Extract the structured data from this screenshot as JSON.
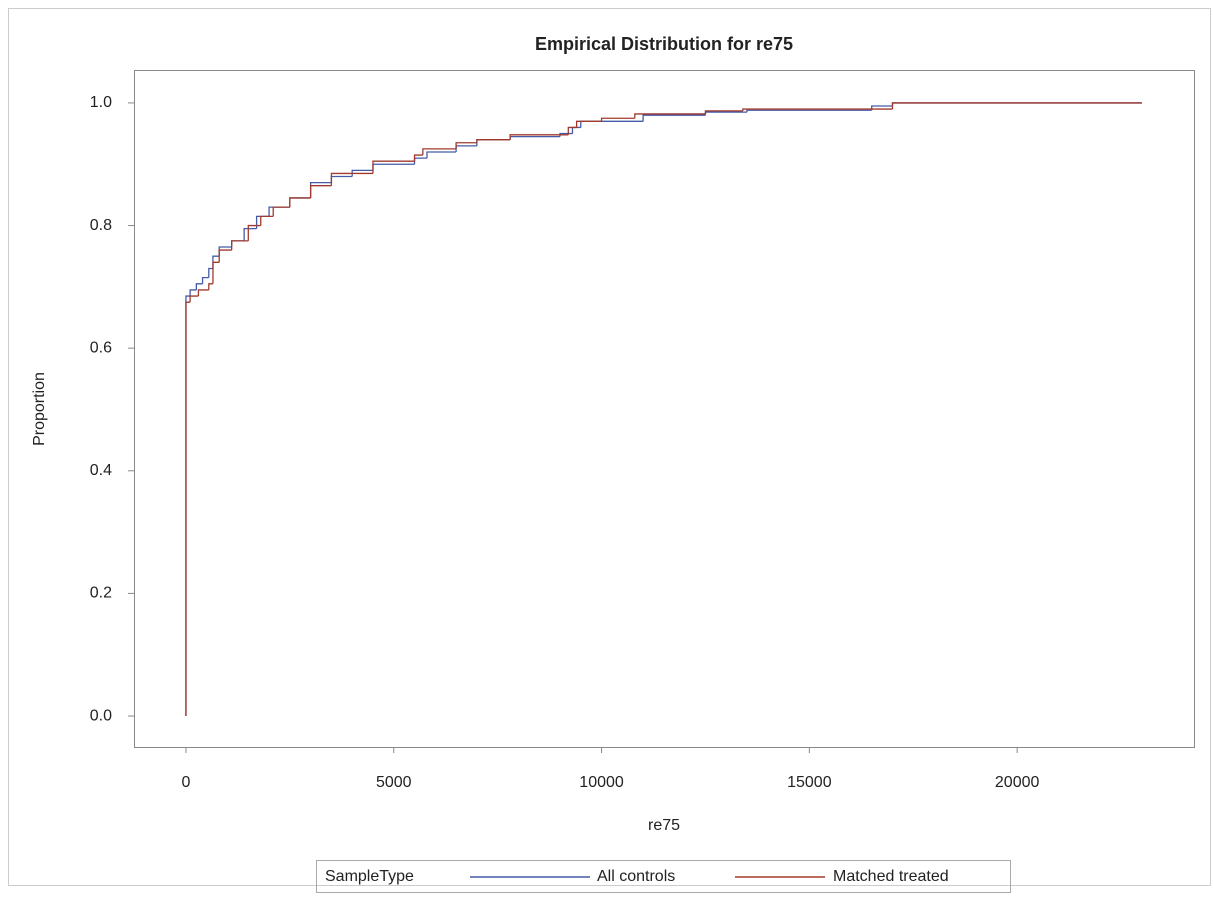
{
  "chart_data": {
    "type": "step",
    "title": "Empirical Distribution for re75",
    "x_label": "re75",
    "y_label": "Proportion",
    "legend_title": "SampleType",
    "legend_position": "bottom",
    "xlim": [
      -1250,
      24255
    ],
    "xticks": [
      0,
      5000,
      10000,
      15000,
      20000
    ],
    "ylim": [
      -0.0505,
      1.0537
    ],
    "yticks": [
      {
        "value": 0,
        "label": "0.0"
      },
      0.2,
      0.4,
      0.6,
      0.8,
      {
        "value": 1,
        "label": "1.0"
      }
    ],
    "series": [
      {
        "name": "All controls",
        "color": "#445ca8",
        "x": [
          0,
          0,
          100,
          250,
          400,
          550,
          650,
          800,
          1100,
          1400,
          1700,
          2000,
          2500,
          3000,
          3500,
          4000,
          4500,
          5500,
          5800,
          6500,
          7000,
          7800,
          9000,
          9300,
          9500,
          11000,
          12500,
          13500,
          16500,
          17000,
          23000
        ],
        "values": [
          0,
          0.685,
          0.695,
          0.705,
          0.715,
          0.73,
          0.75,
          0.765,
          0.775,
          0.795,
          0.815,
          0.83,
          0.845,
          0.87,
          0.88,
          0.89,
          0.9,
          0.91,
          0.92,
          0.93,
          0.94,
          0.945,
          0.95,
          0.96,
          0.97,
          0.98,
          0.985,
          0.988,
          0.995,
          1,
          1
        ]
      },
      {
        "name": "Matched treated",
        "color": "#a23a2e",
        "x": [
          0,
          0,
          100,
          300,
          550,
          650,
          800,
          1100,
          1500,
          1800,
          2100,
          2500,
          3000,
          3500,
          4500,
          5500,
          5700,
          6500,
          7000,
          7800,
          9200,
          9400,
          10000,
          10800,
          12500,
          13400,
          16600,
          17000,
          23000
        ],
        "values": [
          0,
          0.675,
          0.685,
          0.695,
          0.705,
          0.74,
          0.76,
          0.775,
          0.8,
          0.815,
          0.83,
          0.845,
          0.865,
          0.885,
          0.905,
          0.915,
          0.925,
          0.935,
          0.94,
          0.948,
          0.96,
          0.97,
          0.975,
          0.982,
          0.987,
          0.99,
          0.99,
          1,
          1
        ]
      }
    ]
  }
}
